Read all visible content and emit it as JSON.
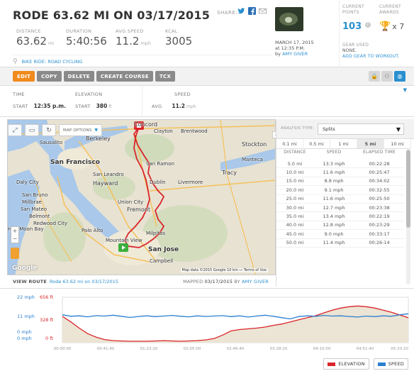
{
  "header": {
    "title": "RODE 63.62 MI ON 03/17/2015",
    "share_label": "SHARE:",
    "stats": [
      {
        "label": "DISTANCE",
        "value": "63.62",
        "unit": "mi"
      },
      {
        "label": "DURATION",
        "value": "5:40:56",
        "unit": ""
      },
      {
        "label": "AVG SPEED",
        "value": "11.2",
        "unit": "mph"
      },
      {
        "label": "KCAL",
        "value": "3005",
        "unit": ""
      }
    ],
    "activity_link": "BIKE RIDE: ROAD CYCLING",
    "ride_date": "MARCH 17, 2015",
    "ride_time": "at 12:35 P.M.",
    "by_prefix": "by",
    "by_user": "AMY GIVER"
  },
  "points": {
    "points_label_1": "CURRENT",
    "points_label_2": "POINTS",
    "points_value": "103",
    "points_help": "?",
    "awards_label_1": "CURRENT",
    "awards_label_2": "AWARDS",
    "awards_value": "x 7",
    "gear_label": "GEAR USED",
    "gear_value": "NONE.",
    "gear_add": "ADD GEAR TO WORKOUT."
  },
  "toolbar": {
    "edit": "EDIT",
    "copy": "COPY",
    "delete": "DELETE",
    "create_course": "CREATE COURSE",
    "tcx": "TCX"
  },
  "info": {
    "time_label": "TIME",
    "start_label": "START",
    "time_value": "12:35 p.m.",
    "elevation_label": "ELEVATION",
    "elevation_start_label": "START",
    "elevation_value": "380",
    "elevation_unit": "ft",
    "speed_label": "SPEED",
    "avg_label": "AVG",
    "speed_value": "11.2",
    "speed_unit": "mph"
  },
  "map": {
    "options_label": "MAP OPTIONS",
    "credit": "Map data ©2015 Google   10 km ⎯⎯   Terms of Use",
    "google": "Google",
    "cities": [
      {
        "name": "Concord",
        "cls": "mid"
      },
      {
        "name": "Clayton",
        "cls": ""
      },
      {
        "name": "Brentwood",
        "cls": ""
      },
      {
        "name": "Berkeley",
        "cls": "mid"
      },
      {
        "name": "Sausalito",
        "cls": ""
      },
      {
        "name": "San Francisco",
        "cls": "big"
      },
      {
        "name": "San Ramon",
        "cls": ""
      },
      {
        "name": "San Leandro",
        "cls": ""
      },
      {
        "name": "Tracy",
        "cls": "mid"
      },
      {
        "name": "Stockton",
        "cls": "mid"
      },
      {
        "name": "Manteca",
        "cls": ""
      },
      {
        "name": "Daly City",
        "cls": ""
      },
      {
        "name": "Hayward",
        "cls": "mid"
      },
      {
        "name": "Dublin",
        "cls": ""
      },
      {
        "name": "Livermore",
        "cls": ""
      },
      {
        "name": "San Bruno",
        "cls": ""
      },
      {
        "name": "Millbrae",
        "cls": ""
      },
      {
        "name": "Union City",
        "cls": ""
      },
      {
        "name": "Fremont",
        "cls": "mid"
      },
      {
        "name": "San Mateo",
        "cls": ""
      },
      {
        "name": "Belmont",
        "cls": ""
      },
      {
        "name": "Redwood City",
        "cls": ""
      },
      {
        "name": "Half Moon Bay",
        "cls": ""
      },
      {
        "name": "Palo Alto",
        "cls": ""
      },
      {
        "name": "Milpitas",
        "cls": ""
      },
      {
        "name": "Mountain View",
        "cls": ""
      },
      {
        "name": "San Jose",
        "cls": "big"
      },
      {
        "name": "Campbell",
        "cls": ""
      }
    ]
  },
  "view_route": {
    "label": "VIEW ROUTE",
    "link": "Rode 63.62 mi on 03/17/2015",
    "mapped_prefix": "MAPPED",
    "mapped_date": "03/17/2015",
    "mapped_by": "BY",
    "mapped_user": "AMY GIVER"
  },
  "analysis": {
    "type_label": "ANALYSIS TYPE:",
    "type_value": "Splits",
    "tabs": [
      "0.1 mi",
      "0.5 mi",
      "1 mi",
      "5 mi",
      "10 mi"
    ],
    "active_tab": 3,
    "columns": [
      "DISTANCE",
      "SPEED",
      "ELAPSED TIME"
    ],
    "rows": [
      [
        "5.0 mi",
        "13.3 mph",
        "00:22:28"
      ],
      [
        "10.0 mi",
        "11.6 mph",
        "00:25:47"
      ],
      [
        "15.0 mi",
        "8.8 mph",
        "00:34:02"
      ],
      [
        "20.0 mi",
        "9.1 mph",
        "00:32:55"
      ],
      [
        "25.0 mi",
        "11.6 mph",
        "00:25:50"
      ],
      [
        "30.0 mi",
        "12.7 mph",
        "00:23:38"
      ],
      [
        "35.0 mi",
        "13.4 mph",
        "00:22:19"
      ],
      [
        "40.0 mi",
        "12.8 mph",
        "00:23:29"
      ],
      [
        "45.0 mi",
        "9.0 mph",
        "00:33:17"
      ],
      [
        "50.0 mi",
        "11.4 mph",
        "00:26:14"
      ]
    ]
  },
  "chart_data": {
    "type": "line",
    "speed_ticks": [
      "22 mph",
      "11 mph",
      "0 mph",
      "0 mph"
    ],
    "elevation_ticks": [
      "656 ft",
      "328 ft",
      "0 ft"
    ],
    "x_ticks": [
      "00:00:00",
      "00:41:40",
      "01:23:20",
      "02:05:00",
      "02:46:40",
      "03:28:20",
      "04:10:00",
      "04:51:40",
      "05:33:20"
    ],
    "series": [
      {
        "name": "ELEVATION",
        "color": "#d9252a",
        "values": [
          380,
          300,
          210,
          130,
          80,
          45,
          30,
          25,
          20,
          20,
          20,
          25,
          30,
          25,
          20,
          25,
          30,
          40,
          60,
          110,
          170,
          190,
          200,
          210,
          225,
          250,
          270,
          300,
          330,
          360,
          390,
          430,
          470,
          500,
          520,
          530,
          520,
          500,
          470,
          440,
          400,
          360
        ]
      },
      {
        "name": "SPEED",
        "color": "#2a7fd0",
        "values": [
          13.5,
          12.8,
          13.0,
          12.5,
          13.1,
          12.9,
          13.3,
          12.8,
          12.2,
          12.7,
          13.0,
          12.6,
          12.9,
          13.2,
          12.8,
          12.5,
          13.0,
          12.7,
          12.9,
          13.1,
          12.6,
          13.0,
          12.4,
          12.9,
          13.3,
          12.8,
          12.1,
          11.5,
          12.6,
          13.0,
          12.8,
          13.2,
          12.9,
          13.0,
          12.7,
          12.4,
          12.9,
          12.6,
          13.0,
          12.8,
          13.5,
          14.0
        ]
      }
    ],
    "speed_range": [
      0,
      22
    ],
    "elevation_range": [
      0,
      656
    ]
  },
  "legend": {
    "elevation": "ELEVATION",
    "speed": "SPEED"
  },
  "colors": {
    "accent": "#2a8fcf",
    "edit": "#f08a1c",
    "route": "#d9252a"
  }
}
